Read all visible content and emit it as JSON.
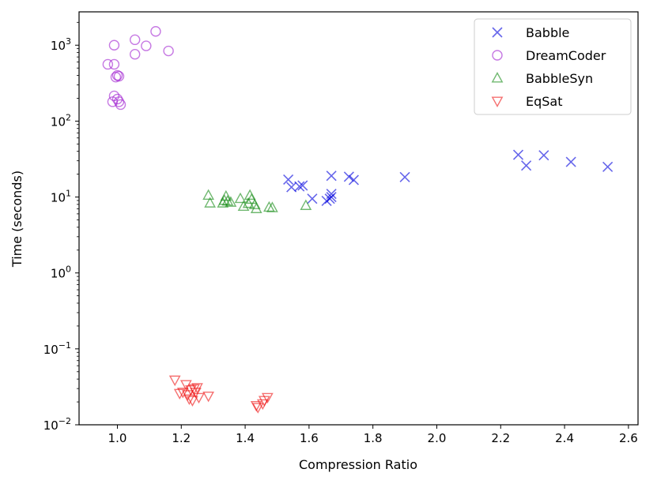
{
  "chart_data": {
    "type": "scatter",
    "xlabel": "Compression Ratio",
    "ylabel": "Time (seconds)",
    "xlim": [
      0.88,
      2.63
    ],
    "ylim": [
      0.01,
      2750
    ],
    "yscale": "log",
    "x_ticks": [
      {
        "value": 1.0,
        "label": "1.0"
      },
      {
        "value": 1.2,
        "label": "1.2"
      },
      {
        "value": 1.4,
        "label": "1.4"
      },
      {
        "value": 1.6,
        "label": "1.6"
      },
      {
        "value": 1.8,
        "label": "1.8"
      },
      {
        "value": 2.0,
        "label": "2.0"
      },
      {
        "value": 2.2,
        "label": "2.2"
      },
      {
        "value": 2.4,
        "label": "2.4"
      },
      {
        "value": 2.6,
        "label": "2.6"
      }
    ],
    "y_ticks": [
      {
        "value": 0.01,
        "base": "10",
        "exp": "−2"
      },
      {
        "value": 0.1,
        "base": "10",
        "exp": "−1"
      },
      {
        "value": 1,
        "base": "10",
        "exp": "0"
      },
      {
        "value": 10,
        "base": "10",
        "exp": "1"
      },
      {
        "value": 100,
        "base": "10",
        "exp": "2"
      },
      {
        "value": 1000,
        "base": "10",
        "exp": "3"
      }
    ],
    "legend_position": "top-right",
    "series": [
      {
        "name": "Babble",
        "marker": "x",
        "color": "#0000dd",
        "points": [
          [
            1.535,
            17.0
          ],
          [
            1.545,
            13.5
          ],
          [
            1.57,
            13.8
          ],
          [
            1.58,
            14.2
          ],
          [
            1.61,
            9.5
          ],
          [
            1.655,
            8.9
          ],
          [
            1.665,
            9.5
          ],
          [
            1.67,
            11.0
          ],
          [
            1.67,
            10.0
          ],
          [
            1.67,
            19.0
          ],
          [
            1.725,
            18.5
          ],
          [
            1.74,
            16.8
          ],
          [
            1.9,
            18.3
          ],
          [
            2.255,
            36.0
          ],
          [
            2.28,
            26.0
          ],
          [
            2.335,
            35.5
          ],
          [
            2.42,
            29.0
          ],
          [
            2.535,
            25.0
          ]
        ]
      },
      {
        "name": "DreamCoder",
        "marker": "o",
        "color": "#a020d0",
        "points": [
          [
            0.97,
            560
          ],
          [
            0.985,
            180
          ],
          [
            0.99,
            215
          ],
          [
            0.99,
            560
          ],
          [
            0.99,
            1000
          ],
          [
            0.995,
            380
          ],
          [
            1.0,
            400
          ],
          [
            1.0,
            195
          ],
          [
            1.005,
            390
          ],
          [
            1.005,
            180
          ],
          [
            1.01,
            165
          ],
          [
            1.055,
            1180
          ],
          [
            1.055,
            760
          ],
          [
            1.09,
            980
          ],
          [
            1.12,
            1520
          ],
          [
            1.16,
            840
          ]
        ]
      },
      {
        "name": "BabbleSyn",
        "marker": "^",
        "color": "#138a13",
        "points": [
          [
            1.285,
            10.5
          ],
          [
            1.29,
            8.3
          ],
          [
            1.33,
            8.3
          ],
          [
            1.335,
            9.0
          ],
          [
            1.34,
            10.2
          ],
          [
            1.345,
            8.8
          ],
          [
            1.355,
            8.5
          ],
          [
            1.385,
            9.5
          ],
          [
            1.395,
            7.5
          ],
          [
            1.41,
            8.2
          ],
          [
            1.415,
            10.5
          ],
          [
            1.42,
            9.3
          ],
          [
            1.43,
            7.9
          ],
          [
            1.435,
            7.0
          ],
          [
            1.475,
            7.3
          ],
          [
            1.485,
            7.2
          ],
          [
            1.59,
            7.7
          ]
        ]
      },
      {
        "name": "EqSat",
        "marker": "v",
        "color": "#ee1111",
        "points": [
          [
            1.18,
            0.039
          ],
          [
            1.195,
            0.026
          ],
          [
            1.205,
            0.027
          ],
          [
            1.215,
            0.034
          ],
          [
            1.22,
            0.025
          ],
          [
            1.225,
            0.022
          ],
          [
            1.23,
            0.029
          ],
          [
            1.235,
            0.021
          ],
          [
            1.24,
            0.03
          ],
          [
            1.245,
            0.027
          ],
          [
            1.25,
            0.031
          ],
          [
            1.255,
            0.023
          ],
          [
            1.285,
            0.024
          ],
          [
            1.435,
            0.018
          ],
          [
            1.44,
            0.017
          ],
          [
            1.455,
            0.019
          ],
          [
            1.46,
            0.021
          ],
          [
            1.47,
            0.023
          ]
        ]
      }
    ]
  }
}
